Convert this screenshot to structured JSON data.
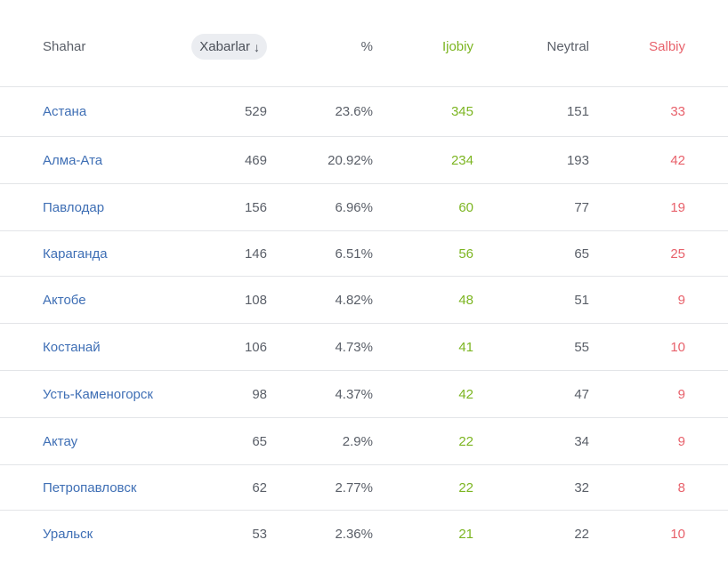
{
  "header": {
    "city": "Shahar",
    "messages": "Xabarlar",
    "percent": "%",
    "positive": "Ijobiy",
    "neutral": "Neytral",
    "negative": "Salbiy"
  },
  "colors": {
    "link": "#3f6fb5",
    "positive": "#7cb521",
    "negative": "#e8616b",
    "text": "#5a5f68",
    "pill": "#ebedf1"
  },
  "icons": {
    "sort": "arrow-down-icon"
  },
  "rows": [
    {
      "city": "Астана",
      "messages": "529",
      "percent": "23.6%",
      "positive": "345",
      "neutral": "151",
      "negative": "33"
    },
    {
      "city": "Алма-Ата",
      "messages": "469",
      "percent": "20.92%",
      "positive": "234",
      "neutral": "193",
      "negative": "42"
    },
    {
      "city": "Павлодар",
      "messages": "156",
      "percent": "6.96%",
      "positive": "60",
      "neutral": "77",
      "negative": "19"
    },
    {
      "city": "Караганда",
      "messages": "146",
      "percent": "6.51%",
      "positive": "56",
      "neutral": "65",
      "negative": "25"
    },
    {
      "city": "Актобе",
      "messages": "108",
      "percent": "4.82%",
      "positive": "48",
      "neutral": "51",
      "negative": "9"
    },
    {
      "city": "Костанай",
      "messages": "106",
      "percent": "4.73%",
      "positive": "41",
      "neutral": "55",
      "negative": "10"
    },
    {
      "city": "Усть-Каменогорск",
      "messages": "98",
      "percent": "4.37%",
      "positive": "42",
      "neutral": "47",
      "negative": "9"
    },
    {
      "city": "Актау",
      "messages": "65",
      "percent": "2.9%",
      "positive": "22",
      "neutral": "34",
      "negative": "9"
    },
    {
      "city": "Петропавловск",
      "messages": "62",
      "percent": "2.77%",
      "positive": "22",
      "neutral": "32",
      "negative": "8"
    },
    {
      "city": "Уральск",
      "messages": "53",
      "percent": "2.36%",
      "positive": "21",
      "neutral": "22",
      "negative": "10"
    }
  ]
}
